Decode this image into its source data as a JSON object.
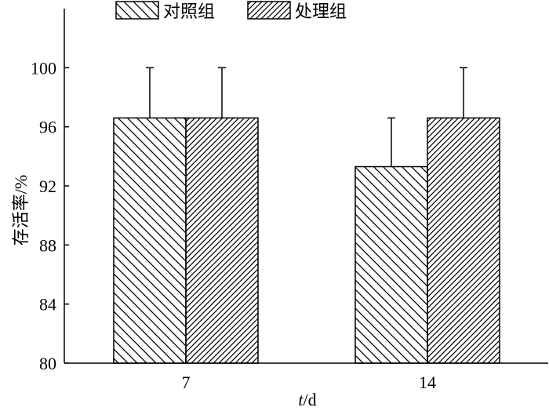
{
  "chart_data": {
    "type": "bar",
    "categories": [
      "7",
      "14"
    ],
    "series": [
      {
        "name": "对照组",
        "values": [
          96.6,
          93.3
        ],
        "errors": [
          3.4,
          3.3
        ],
        "pattern": "hatch-backslash-wide"
      },
      {
        "name": "处理组",
        "values": [
          96.6,
          96.6
        ],
        "errors": [
          3.4,
          3.4
        ],
        "pattern": "hatch-slash-dense"
      }
    ],
    "ylim": [
      80,
      104
    ],
    "yticks": [
      80,
      84,
      88,
      92,
      96,
      100
    ],
    "ylabel": "存活率/%",
    "xlabel_italic": "t",
    "xlabel_rest": "/d",
    "legend_position": "top-center",
    "grid": false,
    "colors": {
      "stroke": "#000000",
      "fill": "#ffffff"
    }
  }
}
